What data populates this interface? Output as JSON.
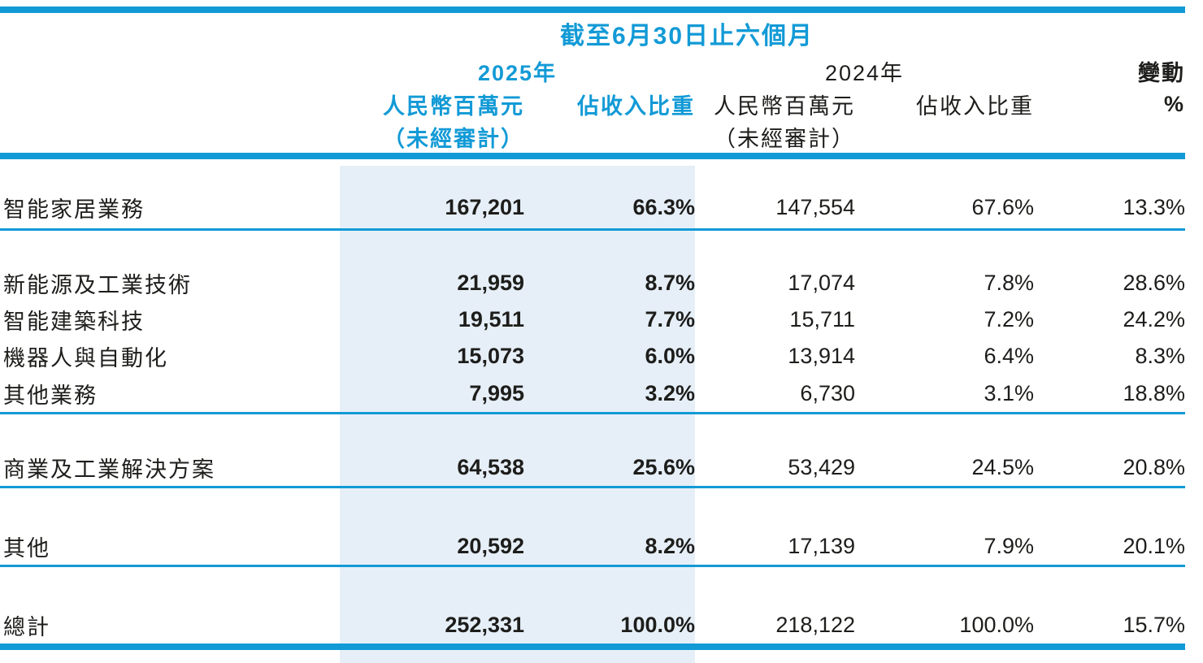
{
  "colors": {
    "accent_cyan": "#129ad6",
    "band_blue": "#e6eff7",
    "text_black": "#1d1d1b"
  },
  "table": {
    "title": "截至6月30日止六個月",
    "col_groups": {
      "year_2025": "2025年",
      "year_2024": "2024年",
      "change_label": "變動",
      "change_unit": "%"
    },
    "sub_headers": {
      "amount_2025": "人民幣百萬元",
      "amount_2025_note": "（未經審計）",
      "share_2025": "佔收入比重",
      "amount_2024": "人民幣百萬元",
      "amount_2024_note": "（未經審計）",
      "share_2024": "佔收入比重"
    },
    "rows": [
      {
        "label": "智能家居業務",
        "amt_2025": "167,201",
        "pct_2025": "66.3%",
        "amt_2024": "147,554",
        "pct_2024": "67.6%",
        "change": "13.3%"
      },
      {
        "label": "新能源及工業技術",
        "amt_2025": "21,959",
        "pct_2025": "8.7%",
        "amt_2024": "17,074",
        "pct_2024": "7.8%",
        "change": "28.6%"
      },
      {
        "label": "智能建築科技",
        "amt_2025": "19,511",
        "pct_2025": "7.7%",
        "amt_2024": "15,711",
        "pct_2024": "7.2%",
        "change": "24.2%"
      },
      {
        "label": "機器人與自動化",
        "amt_2025": "15,073",
        "pct_2025": "6.0%",
        "amt_2024": "13,914",
        "pct_2024": "6.4%",
        "change": "8.3%"
      },
      {
        "label": "其他業務",
        "amt_2025": "7,995",
        "pct_2025": "3.2%",
        "amt_2024": "6,730",
        "pct_2024": "3.1%",
        "change": "18.8%"
      },
      {
        "label": "商業及工業解決方案",
        "amt_2025": "64,538",
        "pct_2025": "25.6%",
        "amt_2024": "53,429",
        "pct_2024": "24.5%",
        "change": "20.8%"
      },
      {
        "label": "其他",
        "amt_2025": "20,592",
        "pct_2025": "8.2%",
        "amt_2024": "17,139",
        "pct_2024": "7.9%",
        "change": "20.1%"
      },
      {
        "label": "總計",
        "amt_2025": "252,331",
        "pct_2025": "100.0%",
        "amt_2024": "218,122",
        "pct_2024": "100.0%",
        "change": "15.7%"
      }
    ]
  }
}
